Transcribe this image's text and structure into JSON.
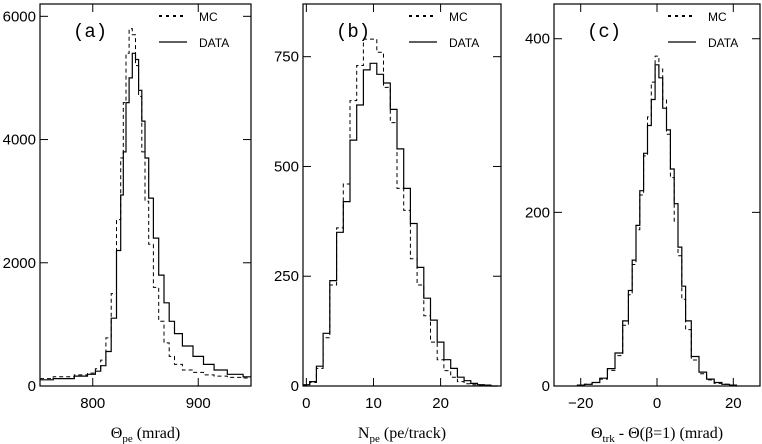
{
  "legend": {
    "mc": "MC",
    "data": "DATA"
  },
  "chart_data": [
    {
      "type": "histogram",
      "panel_label": "(a)",
      "xlabel_main": "Θ",
      "xlabel_sub": "pe",
      "xlabel_rest": " (mrad)",
      "xlim": [
        750,
        950
      ],
      "ylim": [
        0,
        6200
      ],
      "xticks": [
        800,
        900
      ],
      "yticks": [
        0,
        2000,
        4000,
        6000
      ],
      "series": [
        {
          "name": "MC",
          "style": "dashed",
          "x": [
            750,
            775,
            790,
            800,
            805,
            810,
            815,
            820,
            825,
            828,
            830,
            833,
            836,
            839,
            842,
            845,
            848,
            851,
            855,
            860,
            865,
            870,
            875,
            880,
            890,
            900,
            910,
            920,
            935,
            950
          ],
          "y": [
            120,
            150,
            180,
            210,
            280,
            420,
            780,
            1500,
            2700,
            3700,
            4600,
            5400,
            5800,
            5700,
            5200,
            4700,
            3800,
            3000,
            2300,
            1600,
            1050,
            700,
            480,
            350,
            260,
            220,
            180,
            160,
            140,
            130
          ]
        },
        {
          "name": "DATA",
          "style": "solid",
          "x": [
            750,
            775,
            790,
            800,
            805,
            810,
            815,
            820,
            825,
            828,
            830,
            833,
            836,
            839,
            842,
            845,
            848,
            851,
            855,
            860,
            865,
            870,
            875,
            880,
            890,
            900,
            910,
            920,
            935,
            950
          ],
          "y": [
            100,
            120,
            160,
            190,
            240,
            330,
            560,
            1100,
            2200,
            3100,
            3800,
            4600,
            5000,
            5400,
            5300,
            4800,
            4300,
            3700,
            3050,
            2400,
            1800,
            1350,
            1050,
            850,
            650,
            480,
            350,
            260,
            190,
            150
          ]
        }
      ]
    },
    {
      "type": "histogram",
      "panel_label": "(b)",
      "xlabel_main": "N",
      "xlabel_sub": "pe",
      "xlabel_rest": " (pe/track)",
      "xlim": [
        -0.5,
        29
      ],
      "ylim": [
        0,
        870
      ],
      "xticks": [
        0,
        10,
        20
      ],
      "yticks": [
        0,
        250,
        500,
        750
      ],
      "series": [
        {
          "name": "MC",
          "style": "dashed",
          "x": [
            0,
            1,
            2,
            3,
            4,
            5,
            6,
            7,
            8,
            9,
            10,
            11,
            12,
            13,
            14,
            15,
            16,
            17,
            18,
            19,
            20,
            21,
            22,
            23,
            24,
            25,
            26,
            27,
            28
          ],
          "y": [
            2,
            8,
            40,
            110,
            230,
            360,
            460,
            650,
            730,
            790,
            790,
            760,
            680,
            600,
            450,
            400,
            290,
            230,
            160,
            100,
            60,
            35,
            20,
            10,
            5,
            3,
            2,
            1,
            0
          ]
        },
        {
          "name": "DATA",
          "style": "solid",
          "x": [
            0,
            1,
            2,
            3,
            4,
            5,
            6,
            7,
            8,
            9,
            10,
            11,
            12,
            13,
            14,
            15,
            16,
            17,
            18,
            19,
            20,
            21,
            22,
            23,
            24,
            25,
            26,
            27,
            28
          ],
          "y": [
            3,
            10,
            45,
            120,
            240,
            350,
            420,
            560,
            640,
            720,
            735,
            710,
            690,
            630,
            540,
            450,
            370,
            270,
            200,
            150,
            100,
            60,
            40,
            20,
            12,
            6,
            3,
            2,
            0
          ]
        }
      ]
    },
    {
      "type": "histogram",
      "panel_label": "(c)",
      "xlabel_main": "Θ",
      "xlabel_sub": "trk",
      "xlabel_rest": " - Θ(β=1) (mrad)",
      "xlim": [
        -27,
        27
      ],
      "ylim": [
        0,
        440
      ],
      "xticks": [
        -20,
        0,
        20
      ],
      "yticks": [
        0,
        200,
        400
      ],
      "series": [
        {
          "name": "MC",
          "style": "dashed",
          "x": [
            -20,
            -18,
            -16,
            -14,
            -12,
            -10,
            -8,
            -7,
            -6,
            -5,
            -4,
            -3,
            -2,
            -1,
            0,
            1,
            2,
            3,
            4,
            5,
            6,
            7,
            8,
            10,
            12,
            14,
            16,
            18,
            20
          ],
          "y": [
            1,
            2,
            4,
            8,
            18,
            35,
            70,
            105,
            140,
            180,
            220,
            265,
            310,
            350,
            380,
            365,
            330,
            290,
            240,
            190,
            150,
            100,
            65,
            30,
            14,
            7,
            3,
            2,
            1
          ]
        },
        {
          "name": "DATA",
          "style": "solid",
          "x": [
            -20,
            -18,
            -16,
            -14,
            -12,
            -10,
            -8,
            -7,
            -6,
            -5,
            -4,
            -3,
            -2,
            -1,
            0,
            1,
            2,
            3,
            4,
            5,
            6,
            7,
            8,
            10,
            12,
            14,
            16,
            18,
            20
          ],
          "y": [
            1,
            2,
            4,
            9,
            20,
            38,
            75,
            110,
            145,
            185,
            225,
            268,
            300,
            330,
            370,
            355,
            320,
            295,
            250,
            210,
            160,
            115,
            75,
            34,
            16,
            8,
            4,
            2,
            1
          ]
        }
      ]
    }
  ]
}
